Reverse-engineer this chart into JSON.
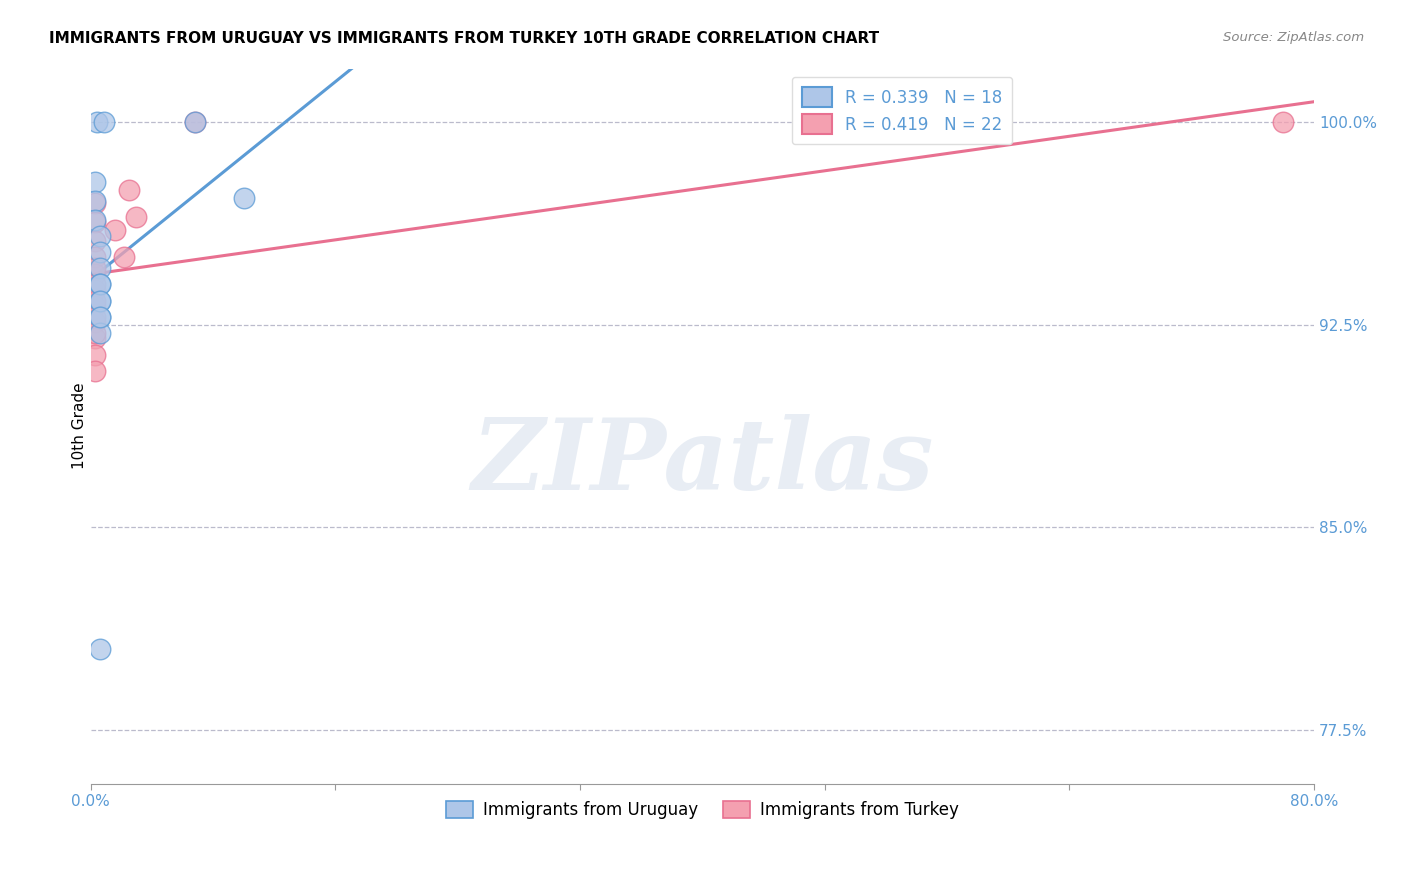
{
  "title": "IMMIGRANTS FROM URUGUAY VS IMMIGRANTS FROM TURKEY 10TH GRADE CORRELATION CHART",
  "source": "Source: ZipAtlas.com",
  "ylabel_label": "10th Grade",
  "xlim": [
    0.0,
    0.8
  ],
  "ylim": [
    0.755,
    1.02
  ],
  "xticks": [
    0.0,
    0.16,
    0.32,
    0.48,
    0.64,
    0.8
  ],
  "xtick_labels": [
    "0.0%",
    "",
    "",
    "",
    "",
    "80.0%"
  ],
  "yticks": [
    0.775,
    0.85,
    0.925,
    1.0
  ],
  "ytick_labels": [
    "77.5%",
    "85.0%",
    "92.5%",
    "100.0%"
  ],
  "uruguay_color": "#aec6e8",
  "turkey_color": "#f4a0b0",
  "uruguay_line_color": "#5b9bd5",
  "turkey_line_color": "#e87090",
  "R_uruguay": 0.339,
  "N_uruguay": 18,
  "R_turkey": 0.419,
  "N_turkey": 22,
  "uruguay_x": [
    0.004,
    0.009,
    0.003,
    0.003,
    0.003,
    0.006,
    0.006,
    0.006,
    0.006,
    0.006,
    0.006,
    0.006,
    0.006,
    0.006,
    0.006,
    0.068,
    0.006,
    0.1
  ],
  "uruguay_y": [
    1.0,
    1.0,
    0.978,
    0.971,
    0.964,
    0.958,
    0.952,
    0.946,
    0.94,
    0.934,
    0.928,
    0.922,
    0.94,
    0.934,
    0.928,
    1.0,
    0.805,
    0.972
  ],
  "turkey_x": [
    0.003,
    0.003,
    0.003,
    0.003,
    0.003,
    0.003,
    0.003,
    0.003,
    0.003,
    0.003,
    0.003,
    0.016,
    0.022,
    0.025,
    0.03,
    0.003,
    0.003,
    0.003,
    0.003,
    0.003,
    0.068,
    0.78
  ],
  "turkey_y": [
    0.97,
    0.963,
    0.956,
    0.95,
    0.944,
    0.938,
    0.932,
    0.926,
    0.92,
    0.914,
    0.908,
    0.96,
    0.95,
    0.975,
    0.965,
    0.946,
    0.94,
    0.934,
    0.928,
    0.922,
    1.0,
    1.0
  ],
  "grid_color": "#bbbbcc",
  "background_color": "#ffffff",
  "watermark_text": "ZIPatlas",
  "title_fontsize": 11,
  "legend_R_color": "#5b9bd5",
  "tick_label_color": "#5b9bd5"
}
